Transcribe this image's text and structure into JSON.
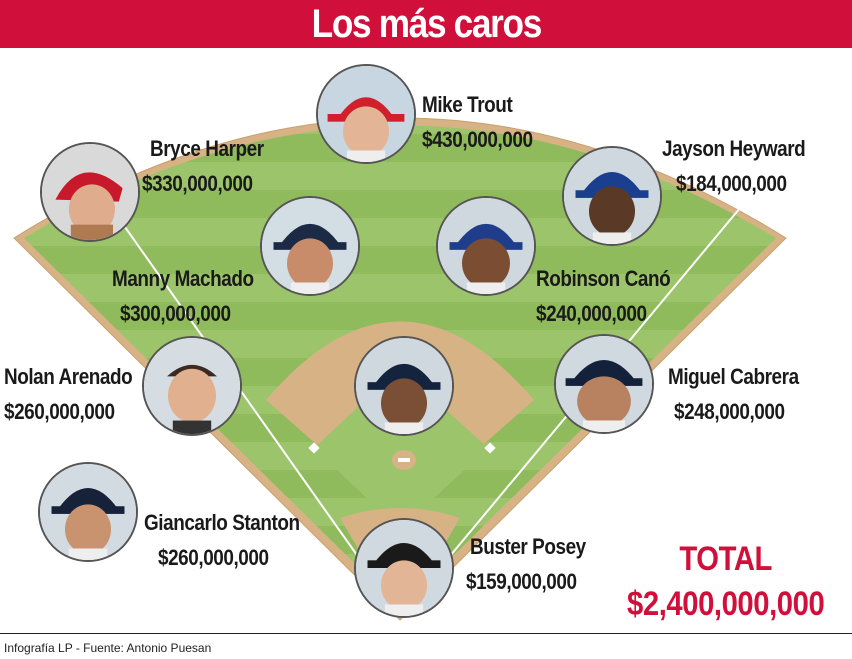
{
  "title": "Los más caros",
  "colors": {
    "accent": "#d0103a",
    "grass_light": "#9cc46a",
    "grass_dark": "#86b251",
    "dirt": "#d6b285",
    "dirt_border": "#c9a06f"
  },
  "players": [
    {
      "id": "trout",
      "name": "Mike Trout",
      "amount": "$430,000,000",
      "cap": "red",
      "cap_color": "#d0202c",
      "icon": "player-photo"
    },
    {
      "id": "harper",
      "name": "Bryce Harper",
      "amount": "$330,000,000",
      "cap": "red helmet",
      "cap_color": "#c8182b",
      "icon": "player-photo"
    },
    {
      "id": "heyward",
      "name": "Jayson Heyward",
      "amount": "$184,000,000",
      "cap": "blue",
      "cap_color": "#1b3f8f",
      "icon": "player-photo"
    },
    {
      "id": "machado",
      "name": "Manny Machado",
      "amount": "$300,000,000",
      "cap": "navy",
      "cap_color": "#1d2a45",
      "icon": "player-photo"
    },
    {
      "id": "cano",
      "name": "Robinson Canó",
      "amount": "$240,000,000",
      "cap": "blue",
      "cap_color": "#1f3d8a",
      "icon": "player-photo"
    },
    {
      "id": "arenado",
      "name": "Nolan Arenado",
      "amount": "$260,000,000",
      "cap": "none",
      "cap_color": "#3a2a22",
      "icon": "player-photo"
    },
    {
      "id": "price",
      "name": "",
      "amount": "",
      "cap": "navy",
      "cap_color": "#15243e",
      "icon": "player-photo"
    },
    {
      "id": "cabrera",
      "name": "Miguel Cabrera",
      "amount": "$248,000,000",
      "cap": "navy",
      "cap_color": "#14213a",
      "icon": "player-photo"
    },
    {
      "id": "stanton",
      "name": "Giancarlo Stanton",
      "amount": "$260,000,000",
      "cap": "navy",
      "cap_color": "#16213a",
      "icon": "player-photo"
    },
    {
      "id": "posey",
      "name": "Buster Posey",
      "amount": "$159,000,000",
      "cap": "black",
      "cap_color": "#1a1a1a",
      "icon": "player-photo"
    }
  ],
  "total": {
    "label": "TOTAL",
    "amount": "$2,400,000,000"
  },
  "footer": "Infografía LP - Fuente: Antonio Puesan"
}
